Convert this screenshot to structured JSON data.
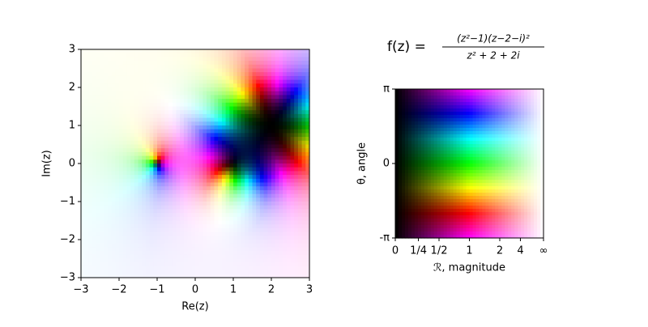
{
  "chart_data": [
    {
      "type": "domain-coloring",
      "function": "(z^2-1)(z-2-i)^2/(z^2+2+2i)",
      "xlabel": "Re(z)",
      "ylabel": "Im(z)",
      "xlim": [
        -3,
        3
      ],
      "ylim": [
        -3,
        3
      ],
      "xticks": [
        {
          "value": -3,
          "label": "−3"
        },
        {
          "value": -2,
          "label": "−2"
        },
        {
          "value": -1,
          "label": "−1"
        },
        0,
        1,
        2,
        3
      ],
      "yticks": [
        {
          "value": -3,
          "label": "−3"
        },
        {
          "value": -2,
          "label": "−2"
        },
        {
          "value": -1,
          "label": "−1"
        },
        0,
        1,
        2,
        3
      ]
    },
    {
      "type": "color-key",
      "title": "f(z) =",
      "title_numerator": "(z²−1)(z−2−i)²",
      "title_denominator": "z² + 2 + 2i",
      "xlabel": "ℛ, magnitude",
      "ylabel": "θ, angle",
      "xscale": "arctan",
      "ylim": [
        -3.14159,
        3.14159
      ],
      "xticks": [
        0,
        {
          "value": 0.25,
          "label": "1/4"
        },
        {
          "value": 0.5,
          "label": "1/2"
        },
        1,
        2,
        4,
        {
          "value": null,
          "label": "∞"
        }
      ],
      "yticks": [
        {
          "value": -3.14159,
          "label": "-π"
        },
        0,
        {
          "value": 3.14159,
          "label": "π"
        }
      ]
    }
  ]
}
